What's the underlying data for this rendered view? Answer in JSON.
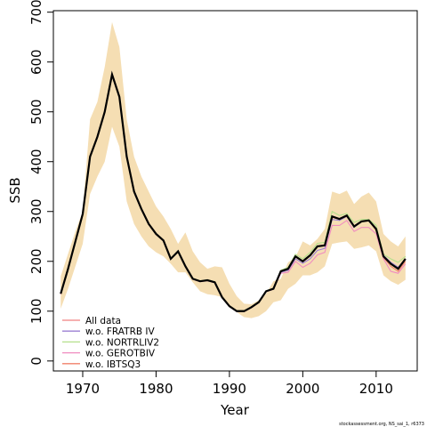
{
  "chart_data": {
    "type": "line",
    "title": "",
    "xlabel": "Year",
    "ylabel": "SSB",
    "xlim": [
      1966,
      2015.6
    ],
    "ylim": [
      -20,
      703
    ],
    "x_ticks": [
      1970,
      1980,
      1990,
      2000,
      2010
    ],
    "y_ticks": [
      0,
      100,
      200,
      300,
      400,
      500,
      600,
      700
    ],
    "grid": false,
    "legend_position": "bottom-left",
    "x": [
      1967,
      1968,
      1969,
      1970,
      1971,
      1972,
      1973,
      1974,
      1975,
      1976,
      1977,
      1978,
      1979,
      1980,
      1981,
      1982,
      1983,
      1984,
      1985,
      1986,
      1987,
      1988,
      1989,
      1990,
      1991,
      1992,
      1993,
      1994,
      1995,
      1996,
      1997,
      1998,
      1999,
      2000,
      2001,
      2002,
      2003,
      2004,
      2005,
      2006,
      2007,
      2008,
      2009,
      2010,
      2011,
      2012,
      2013,
      2014
    ],
    "confidence_band": {
      "color": "#F5DEB3",
      "lower": [
        105,
        145,
        190,
        235,
        335,
        370,
        400,
        470,
        430,
        320,
        275,
        250,
        230,
        218,
        210,
        195,
        178,
        178,
        158,
        140,
        134,
        132,
        128,
        110,
        98,
        88,
        86,
        90,
        100,
        118,
        122,
        145,
        155,
        172,
        172,
        178,
        190,
        235,
        238,
        240,
        225,
        228,
        232,
        220,
        172,
        160,
        153,
        163
      ],
      "upper": [
        170,
        215,
        260,
        300,
        485,
        520,
        590,
        680,
        630,
        485,
        410,
        370,
        340,
        310,
        290,
        265,
        235,
        258,
        220,
        198,
        185,
        190,
        188,
        155,
        130,
        115,
        114,
        122,
        135,
        160,
        165,
        198,
        208,
        240,
        232,
        245,
        265,
        340,
        335,
        342,
        315,
        330,
        338,
        320,
        255,
        240,
        230,
        250
      ]
    },
    "series": [
      {
        "name": "All data",
        "color": "#000000",
        "values": [
          135,
          185,
          240,
          295,
          410,
          450,
          500,
          575,
          530,
          410,
          340,
          305,
          275,
          255,
          242,
          205,
          220,
          190,
          165,
          160,
          162,
          158,
          128,
          110,
          100,
          100,
          108,
          118,
          140,
          145,
          180,
          185,
          210,
          200,
          212,
          230,
          232,
          290,
          285,
          292,
          270,
          280,
          282,
          265,
          210,
          195,
          185,
          205
        ]
      },
      {
        "name": "All data",
        "color": "#F08080",
        "values": [
          135,
          185,
          240,
          295,
          410,
          450,
          500,
          575,
          530,
          410,
          340,
          305,
          275,
          255,
          242,
          205,
          220,
          190,
          165,
          160,
          162,
          158,
          128,
          110,
          100,
          100,
          108,
          118,
          140,
          145,
          180,
          185,
          210,
          200,
          212,
          230,
          232,
          290,
          285,
          292,
          270,
          280,
          282,
          265,
          210,
          195,
          185,
          205
        ]
      },
      {
        "name": "w.o. FRATRB IV",
        "color": "#9B7FD3",
        "values": [
          135,
          185,
          240,
          295,
          410,
          450,
          500,
          575,
          530,
          410,
          340,
          305,
          275,
          255,
          242,
          205,
          220,
          190,
          165,
          160,
          162,
          158,
          128,
          110,
          100,
          100,
          108,
          118,
          140,
          145,
          178,
          182,
          205,
          196,
          205,
          222,
          226,
          284,
          282,
          290,
          268,
          280,
          282,
          265,
          212,
          198,
          188,
          205
        ]
      },
      {
        "name": "w.o. NORTRLIV2",
        "color": "#B5E08C",
        "values": [
          136,
          186,
          241,
          296,
          411,
          451,
          501,
          576,
          531,
          411,
          341,
          306,
          276,
          256,
          243,
          206,
          221,
          191,
          166,
          161,
          163,
          159,
          129,
          111,
          101,
          101,
          109,
          119,
          141,
          146,
          182,
          188,
          214,
          205,
          218,
          236,
          238,
          300,
          292,
          296,
          278,
          284,
          284,
          272,
          214,
          205,
          198,
          210
        ]
      },
      {
        "name": "w.o. GEROTBIV",
        "color": "#F08CC0",
        "values": [
          134,
          184,
          239,
          294,
          409,
          449,
          499,
          574,
          529,
          409,
          339,
          304,
          274,
          254,
          241,
          204,
          219,
          189,
          164,
          159,
          161,
          157,
          127,
          109,
          99,
          99,
          107,
          117,
          139,
          144,
          176,
          178,
          200,
          188,
          196,
          213,
          218,
          272,
          272,
          282,
          260,
          268,
          268,
          255,
          205,
          180,
          176,
          195
        ]
      },
      {
        "name": "w.o. IBTSQ3",
        "color": "#F0806A",
        "values": [
          135,
          185,
          240,
          295,
          410,
          450,
          500,
          575,
          530,
          410,
          340,
          305,
          275,
          255,
          242,
          205,
          220,
          190,
          165,
          160,
          162,
          158,
          128,
          110,
          100,
          100,
          108,
          118,
          140,
          145,
          180,
          185,
          210,
          200,
          212,
          230,
          232,
          288,
          285,
          290,
          270,
          280,
          282,
          262,
          208,
          190,
          180,
          200
        ]
      }
    ],
    "legend": [
      {
        "label": "All data",
        "color": "#F08080"
      },
      {
        "label": "w.o. FRATRB IV",
        "color": "#9B7FD3"
      },
      {
        "label": "w.o. NORTRLIV2",
        "color": "#B5E08C"
      },
      {
        "label": "w.o. GEROTBIV",
        "color": "#F08CC0"
      },
      {
        "label": "w.o. IBTSQ3",
        "color": "#F0806A"
      }
    ]
  },
  "footer": {
    "credit": "stockassessment.org, NS_sai_1, r6373"
  }
}
